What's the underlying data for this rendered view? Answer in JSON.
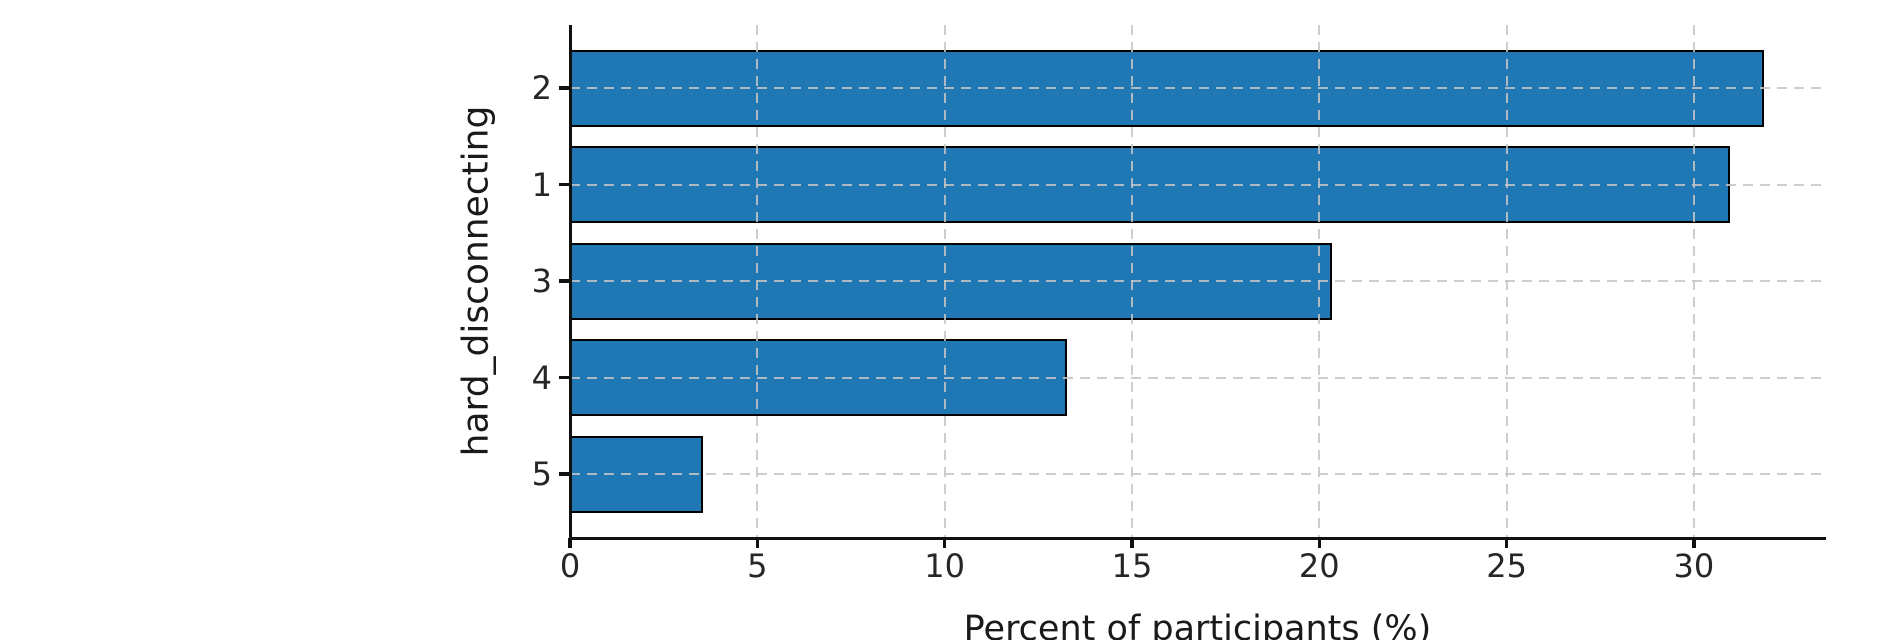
{
  "chart_data": {
    "type": "bar",
    "orientation": "horizontal",
    "title": "",
    "xlabel": "Percent of participants (%)",
    "ylabel": "hard_disconnecting",
    "categories": [
      "2",
      "1",
      "3",
      "4",
      "5"
    ],
    "values": [
      31.86,
      30.97,
      20.35,
      13.27,
      3.54
    ],
    "xticks": [
      0,
      5,
      10,
      15,
      20,
      25,
      30
    ],
    "xticklabels": [
      "0",
      "5",
      "10",
      "15",
      "20",
      "25",
      "30"
    ],
    "xlim": [
      0,
      33.5
    ],
    "grid": "dashed, light gray, drawn over bars",
    "legend": "none",
    "colors": {
      "bar_fill": "#1f77b4",
      "bar_edge": "#000000",
      "grid_line": "#c6c6c6",
      "spine": "#111111",
      "tick_text": "#262626",
      "background": "#ffffff"
    }
  }
}
